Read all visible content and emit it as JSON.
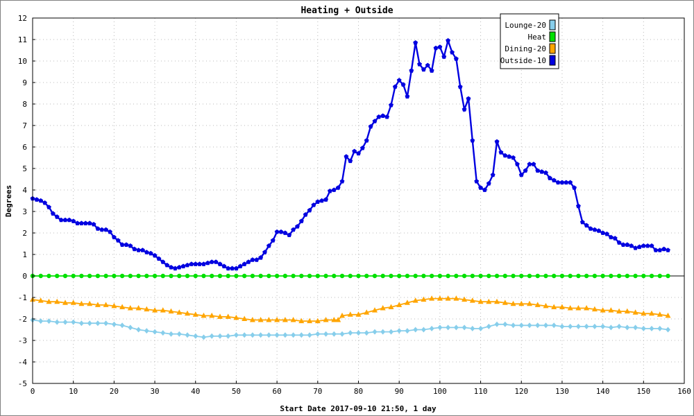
{
  "chart_data": {
    "type": "line",
    "title": "Heating + Outside",
    "xlabel": "Start Date 2017-09-10 21:50, 1 day",
    "ylabel": "Degrees",
    "xlim": [
      0,
      160
    ],
    "ylim": [
      -5,
      12
    ],
    "xticks": [
      0,
      10,
      20,
      30,
      40,
      50,
      60,
      70,
      80,
      90,
      100,
      110,
      120,
      130,
      140,
      150,
      160
    ],
    "yticks": [
      -5,
      -4,
      -3,
      -2,
      -1,
      0,
      1,
      2,
      3,
      4,
      5,
      6,
      7,
      8,
      9,
      10,
      11,
      12
    ],
    "grid": true,
    "legend_position": "top-right",
    "series": [
      {
        "name": "Lounge-20",
        "color": "#87ceeb",
        "marker": "diamond",
        "x": [
          0,
          2,
          4,
          6,
          8,
          10,
          12,
          14,
          16,
          18,
          20,
          22,
          24,
          26,
          28,
          30,
          32,
          34,
          36,
          38,
          40,
          42,
          44,
          46,
          48,
          50,
          52,
          54,
          56,
          58,
          60,
          62,
          64,
          66,
          68,
          70,
          72,
          74,
          76,
          78,
          80,
          82,
          84,
          86,
          88,
          90,
          92,
          94,
          96,
          98,
          100,
          102,
          104,
          106,
          108,
          110,
          112,
          114,
          116,
          118,
          120,
          122,
          124,
          126,
          128,
          130,
          132,
          134,
          136,
          138,
          140,
          142,
          144,
          146,
          148,
          150,
          152,
          154,
          156
        ],
        "y": [
          -2.05,
          -2.1,
          -2.1,
          -2.15,
          -2.15,
          -2.15,
          -2.2,
          -2.2,
          -2.2,
          -2.2,
          -2.25,
          -2.3,
          -2.4,
          -2.5,
          -2.55,
          -2.6,
          -2.65,
          -2.7,
          -2.7,
          -2.75,
          -2.8,
          -2.85,
          -2.8,
          -2.8,
          -2.8,
          -2.75,
          -2.75,
          -2.75,
          -2.75,
          -2.75,
          -2.75,
          -2.75,
          -2.75,
          -2.75,
          -2.75,
          -2.7,
          -2.7,
          -2.7,
          -2.7,
          -2.65,
          -2.65,
          -2.65,
          -2.6,
          -2.6,
          -2.6,
          -2.55,
          -2.55,
          -2.5,
          -2.5,
          -2.45,
          -2.4,
          -2.4,
          -2.4,
          -2.4,
          -2.45,
          -2.45,
          -2.35,
          -2.25,
          -2.25,
          -2.3,
          -2.3,
          -2.3,
          -2.3,
          -2.3,
          -2.3,
          -2.35,
          -2.35,
          -2.35,
          -2.35,
          -2.35,
          -2.35,
          -2.4,
          -2.35,
          -2.4,
          -2.4,
          -2.45,
          -2.45,
          -2.45,
          -2.5
        ]
      },
      {
        "name": "Heat",
        "color": "#00e000",
        "marker": "circle",
        "x": [
          0,
          2,
          4,
          6,
          8,
          10,
          12,
          14,
          16,
          18,
          20,
          22,
          24,
          26,
          28,
          30,
          32,
          34,
          36,
          38,
          40,
          42,
          44,
          46,
          48,
          50,
          52,
          54,
          56,
          58,
          60,
          62,
          64,
          66,
          68,
          70,
          72,
          74,
          76,
          78,
          80,
          82,
          84,
          86,
          88,
          90,
          92,
          94,
          96,
          98,
          100,
          102,
          104,
          106,
          108,
          110,
          112,
          114,
          116,
          118,
          120,
          122,
          124,
          126,
          128,
          130,
          132,
          134,
          136,
          138,
          140,
          142,
          144,
          146,
          148,
          150,
          152,
          154,
          156
        ],
        "y": [
          0,
          0,
          0,
          0,
          0,
          0,
          0,
          0,
          0,
          0,
          0,
          0,
          0,
          0,
          0,
          0,
          0,
          0,
          0,
          0,
          0,
          0,
          0,
          0,
          0,
          0,
          0,
          0,
          0,
          0,
          0,
          0,
          0,
          0,
          0,
          0,
          0,
          0,
          0,
          0,
          0,
          0,
          0,
          0,
          0,
          0,
          0,
          0,
          0,
          0,
          0,
          0,
          0,
          0,
          0,
          0,
          0,
          0,
          0,
          0,
          0,
          0,
          0,
          0,
          0,
          0,
          0,
          0,
          0,
          0,
          0,
          0,
          0,
          0,
          0,
          0,
          0,
          0,
          0
        ]
      },
      {
        "name": "Dining-20",
        "color": "#ffa500",
        "marker": "triangle",
        "x": [
          0,
          2,
          4,
          6,
          8,
          10,
          12,
          14,
          16,
          18,
          20,
          22,
          24,
          26,
          28,
          30,
          32,
          34,
          36,
          38,
          40,
          42,
          44,
          46,
          48,
          50,
          52,
          54,
          56,
          58,
          60,
          62,
          64,
          66,
          68,
          70,
          72,
          74,
          75,
          76,
          78,
          80,
          82,
          84,
          86,
          88,
          90,
          92,
          94,
          96,
          98,
          100,
          102,
          104,
          106,
          108,
          110,
          112,
          114,
          116,
          118,
          120,
          122,
          124,
          126,
          128,
          130,
          132,
          134,
          136,
          138,
          140,
          142,
          144,
          146,
          148,
          150,
          152,
          154,
          156
        ],
        "y": [
          -1.1,
          -1.15,
          -1.2,
          -1.2,
          -1.25,
          -1.25,
          -1.3,
          -1.3,
          -1.35,
          -1.35,
          -1.4,
          -1.45,
          -1.5,
          -1.5,
          -1.55,
          -1.6,
          -1.6,
          -1.65,
          -1.7,
          -1.75,
          -1.8,
          -1.85,
          -1.85,
          -1.9,
          -1.9,
          -1.95,
          -2.0,
          -2.05,
          -2.05,
          -2.05,
          -2.05,
          -2.05,
          -2.05,
          -2.1,
          -2.1,
          -2.1,
          -2.05,
          -2.05,
          -2.05,
          -1.85,
          -1.8,
          -1.8,
          -1.7,
          -1.6,
          -1.5,
          -1.45,
          -1.35,
          -1.25,
          -1.15,
          -1.1,
          -1.05,
          -1.05,
          -1.05,
          -1.05,
          -1.1,
          -1.15,
          -1.2,
          -1.2,
          -1.2,
          -1.25,
          -1.3,
          -1.3,
          -1.3,
          -1.35,
          -1.4,
          -1.45,
          -1.45,
          -1.5,
          -1.5,
          -1.5,
          -1.55,
          -1.6,
          -1.6,
          -1.65,
          -1.65,
          -1.7,
          -1.75,
          -1.75,
          -1.8,
          -1.85
        ]
      },
      {
        "name": "Outside-10",
        "color": "#0000e0",
        "marker": "pentagon",
        "x": [
          0,
          1,
          2,
          3,
          4,
          5,
          6,
          7,
          8,
          9,
          10,
          11,
          12,
          13,
          14,
          15,
          16,
          17,
          18,
          19,
          20,
          21,
          22,
          23,
          24,
          25,
          26,
          27,
          28,
          29,
          30,
          31,
          32,
          33,
          34,
          35,
          36,
          37,
          38,
          39,
          40,
          41,
          42,
          43,
          44,
          45,
          46,
          47,
          48,
          49,
          50,
          51,
          52,
          53,
          54,
          55,
          56,
          57,
          58,
          59,
          60,
          61,
          62,
          63,
          64,
          65,
          66,
          67,
          68,
          69,
          70,
          71,
          72,
          73,
          74,
          75,
          76,
          77,
          78,
          79,
          80,
          81,
          82,
          83,
          84,
          85,
          86,
          87,
          88,
          89,
          90,
          91,
          92,
          93,
          94,
          95,
          96,
          97,
          98,
          99,
          100,
          101,
          102,
          103,
          104,
          105,
          106,
          107,
          108,
          109,
          110,
          111,
          112,
          113,
          114,
          115,
          116,
          117,
          118,
          119,
          120,
          121,
          122,
          123,
          124,
          125,
          126,
          127,
          128,
          129,
          130,
          131,
          132,
          133,
          134,
          135,
          136,
          137,
          138,
          139,
          140,
          141,
          142,
          143,
          144,
          145,
          146,
          147,
          148,
          149,
          150,
          151,
          152,
          153,
          154,
          155,
          156
        ],
        "y": [
          3.6,
          3.55,
          3.5,
          3.4,
          3.2,
          2.9,
          2.75,
          2.6,
          2.6,
          2.6,
          2.55,
          2.45,
          2.45,
          2.45,
          2.45,
          2.4,
          2.2,
          2.15,
          2.15,
          2.05,
          1.8,
          1.65,
          1.45,
          1.45,
          1.4,
          1.25,
          1.2,
          1.2,
          1.1,
          1.05,
          0.95,
          0.8,
          0.65,
          0.5,
          0.4,
          0.35,
          0.4,
          0.45,
          0.5,
          0.55,
          0.55,
          0.55,
          0.55,
          0.6,
          0.65,
          0.65,
          0.55,
          0.45,
          0.35,
          0.35,
          0.35,
          0.45,
          0.55,
          0.65,
          0.75,
          0.75,
          0.85,
          1.1,
          1.4,
          1.65,
          2.05,
          2.05,
          2.0,
          1.9,
          2.15,
          2.3,
          2.55,
          2.85,
          3.05,
          3.3,
          3.45,
          3.5,
          3.55,
          3.95,
          4.0,
          4.1,
          4.4,
          5.55,
          5.35,
          5.8,
          5.7,
          5.95,
          6.3,
          6.95,
          7.2,
          7.4,
          7.45,
          7.4,
          7.95,
          8.8,
          9.1,
          8.9,
          8.35,
          9.55,
          10.85,
          9.85,
          9.6,
          9.8,
          9.55,
          10.6,
          10.65,
          10.2,
          10.95,
          10.4,
          10.1,
          8.8,
          7.75,
          8.25,
          6.3,
          4.4,
          4.1,
          4.0,
          4.3,
          4.7,
          6.25,
          5.75,
          5.6,
          5.55,
          5.5,
          5.2,
          4.7,
          4.9,
          5.2,
          5.2,
          4.9,
          4.85,
          4.8,
          4.55,
          4.45,
          4.35,
          4.35,
          4.35,
          4.35,
          4.1,
          3.25,
          2.5,
          2.35,
          2.2,
          2.15,
          2.1,
          2.0,
          1.95,
          1.8,
          1.75,
          1.55,
          1.45,
          1.45,
          1.4,
          1.3,
          1.35,
          1.4,
          1.4,
          1.4,
          1.2,
          1.2,
          1.25,
          1.2
        ]
      }
    ]
  }
}
